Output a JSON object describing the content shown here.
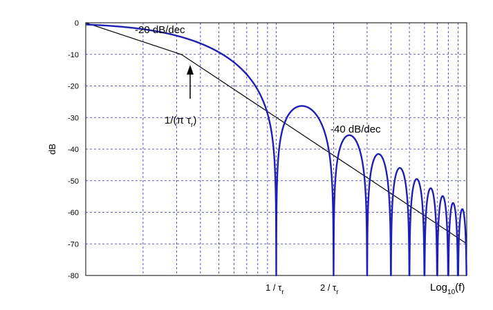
{
  "chart_data": {
    "type": "line",
    "title": "",
    "xlabel": {
      "main": "Log",
      "sub": "10",
      "rest": "(f)"
    },
    "ylabel": "dB",
    "ylim": [
      -80,
      0
    ],
    "yticks": [
      0,
      -10,
      -20,
      -30,
      -40,
      -50,
      -60,
      -70,
      -80
    ],
    "x_scale": "log10",
    "x_range_decades": 2,
    "grid": true,
    "x_tick_labels": [
      {
        "num": "1 / ",
        "tau": "τ",
        "sub": "r",
        "at": 1
      },
      {
        "num": "2 / ",
        "tau": "τ",
        "sub": "r",
        "at": 2
      }
    ],
    "series": [
      {
        "kind": "sinc_squared_spectrum",
        "color": "#1f1fb4"
      },
      {
        "kind": "asymptote_envelope",
        "color": "#000000",
        "corner_at": 0.3183,
        "slopes_db_per_decade": [
          -20,
          -40
        ]
      }
    ],
    "annotations": {
      "slope1": "-20 dB/dec",
      "slope2": "-40 dB/dec",
      "corner": {
        "pre": "1/(π ",
        "tau": "τ",
        "sub": "r",
        "post": ")"
      }
    }
  }
}
